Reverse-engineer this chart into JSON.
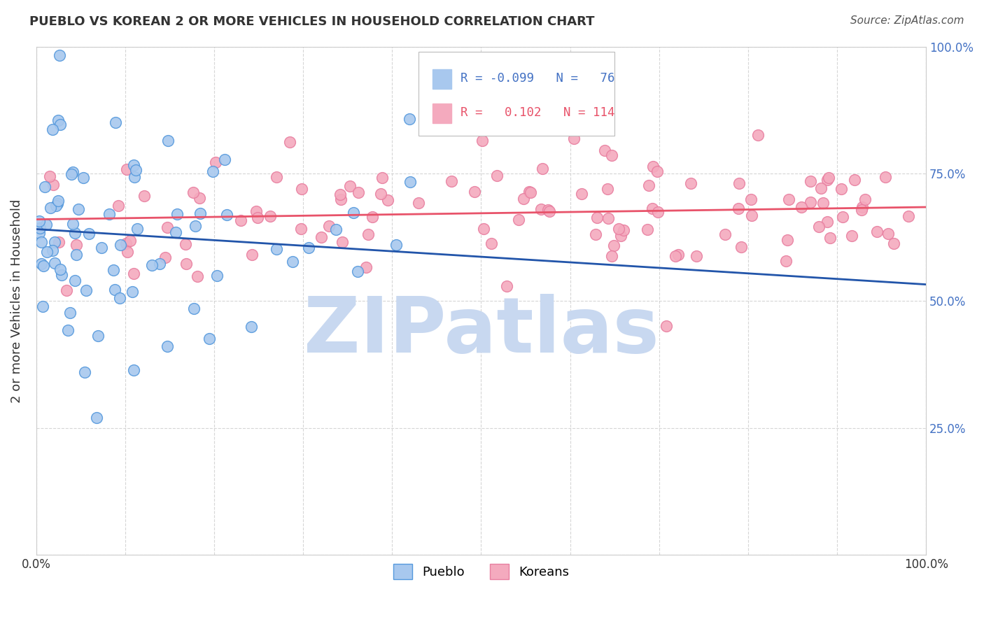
{
  "title": "PUEBLO VS KOREAN 2 OR MORE VEHICLES IN HOUSEHOLD CORRELATION CHART",
  "source": "Source: ZipAtlas.com",
  "ylabel": "2 or more Vehicles in Household",
  "legend_labels": [
    "Pueblo",
    "Koreans"
  ],
  "R_pueblo": -0.099,
  "R_korean": 0.102,
  "N_pueblo": 76,
  "N_korean": 114,
  "pueblo_color": "#A8C8EE",
  "pueblo_edge_color": "#5599DD",
  "korean_color": "#F4AABE",
  "korean_edge_color": "#E87FA0",
  "pueblo_line_color": "#2255AA",
  "korean_line_color": "#E8536A",
  "legend_text_color_blue": "#4472C4",
  "legend_text_color_pink": "#E8536A",
  "background_color": "#FFFFFF",
  "grid_color": "#CCCCCC",
  "title_color": "#333333",
  "watermark_text": "ZIPatlas",
  "watermark_color": "#C8D8F0",
  "xlim": [
    0,
    100
  ],
  "ylim": [
    0,
    100
  ],
  "figsize": [
    14.06,
    8.92
  ],
  "dpi": 100
}
